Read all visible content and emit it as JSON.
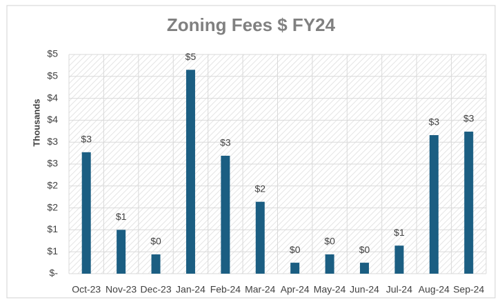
{
  "chart_data": {
    "type": "bar",
    "title": "Zoning Fees $ FY24",
    "y_label": "Thousands",
    "categories": [
      "Oct-23",
      "Nov-23",
      "Dec-23",
      "Jan-24",
      "Feb-24",
      "Mar-24",
      "Apr-24",
      "May-24",
      "Jun-24",
      "Jul-24",
      "Aug-24",
      "Sep-24"
    ],
    "values": [
      2.77,
      1.0,
      0.44,
      4.65,
      2.69,
      1.64,
      0.25,
      0.44,
      0.25,
      0.64,
      3.16,
      3.24
    ],
    "value_labels": [
      "$3",
      "$1",
      "$0",
      "$5",
      "$3",
      "$2",
      "$0",
      "$0",
      "$0",
      "$1",
      "$3",
      "$3"
    ],
    "color": "#1b5e82",
    "ylim": [
      0,
      5
    ],
    "yticks": [
      {
        "value": 0,
        "label": "$-"
      },
      {
        "value": 0.5,
        "label": "$1"
      },
      {
        "value": 1,
        "label": "$1"
      },
      {
        "value": 1.5,
        "label": "$2"
      },
      {
        "value": 2,
        "label": "$2"
      },
      {
        "value": 2.5,
        "label": "$3"
      },
      {
        "value": 3,
        "label": "$3"
      },
      {
        "value": 3.5,
        "label": "$4"
      },
      {
        "value": 4,
        "label": "$4"
      },
      {
        "value": 4.5,
        "label": "$5"
      },
      {
        "value": 5,
        "label": "$5"
      }
    ],
    "grid": true
  }
}
